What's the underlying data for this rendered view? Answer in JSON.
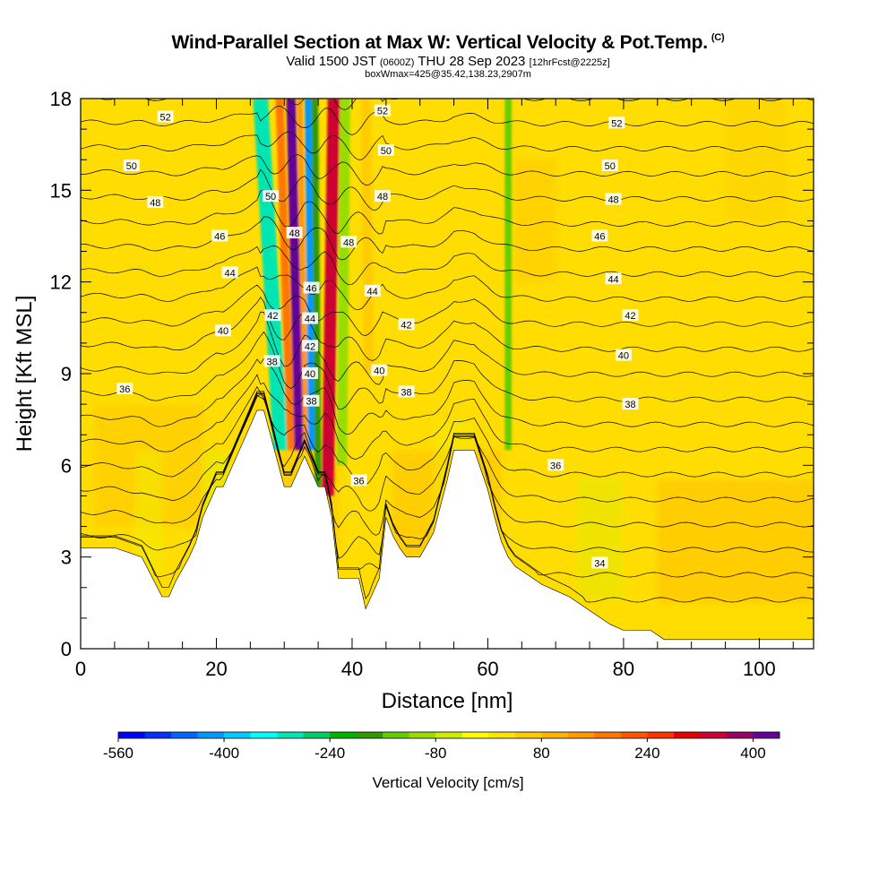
{
  "title": {
    "main": "Wind-Parallel Section at Max W: Vertical Velocity & Pot.Temp.",
    "unit_mark": "(C)",
    "line2_valid": "Valid 1500 JST",
    "line2_utc": "(0600Z)",
    "line2_date": "THU 28 Sep 2023",
    "line2_fcst": "[12hrFcst@2225z]",
    "line3": "boxWmax=425@35.42,138.23,2907m"
  },
  "chart_data": {
    "type": "contour",
    "xlabel": "Distance [nm]",
    "ylabel": "Height [Kft MSL]",
    "xlim": [
      0,
      108
    ],
    "ylim": [
      0,
      18
    ],
    "x_ticks": [
      "0",
      "20",
      "40",
      "60",
      "80",
      "100"
    ],
    "y_ticks": [
      "0",
      "3",
      "6",
      "9",
      "12",
      "15",
      "18"
    ],
    "colorbar": {
      "label": "Vertical Velocity [cm/s]",
      "tick_labels": [
        "-560",
        "-400",
        "-240",
        "-80",
        "80",
        "240",
        "400"
      ],
      "tick_values": [
        -560,
        -400,
        -240,
        -80,
        80,
        240,
        400
      ],
      "range": [
        -560,
        440
      ],
      "colors": [
        "#0000ff",
        "#0033ff",
        "#0066ff",
        "#0099ff",
        "#00ccff",
        "#00ffff",
        "#00e6b3",
        "#00cc66",
        "#00b300",
        "#339900",
        "#66cc00",
        "#99dd00",
        "#ccee00",
        "#ffff00",
        "#ffe600",
        "#ffcc00",
        "#ffb300",
        "#ff9900",
        "#ff7700",
        "#ff5500",
        "#ff3300",
        "#e60000",
        "#cc0033",
        "#990066",
        "#660099"
      ]
    },
    "terrain_profile": {
      "x": [
        0,
        5,
        9,
        12,
        13,
        14,
        16,
        17,
        18,
        20,
        21,
        24,
        26,
        27,
        30,
        31,
        33,
        35,
        36,
        37,
        38,
        41,
        42,
        44,
        45,
        46,
        47,
        48,
        50,
        52,
        54,
        55,
        56,
        58,
        60,
        61,
        62,
        63,
        64,
        66,
        68,
        70,
        72,
        74,
        76,
        78,
        80,
        82,
        84,
        86,
        88,
        90,
        95,
        100,
        105,
        108
      ],
      "height_kft": [
        3.3,
        3.3,
        3.0,
        1.7,
        1.7,
        2.2,
        3.0,
        3.5,
        4.3,
        5.3,
        5.3,
        6.8,
        7.8,
        7.8,
        5.3,
        5.3,
        6.3,
        5.3,
        5.3,
        4.3,
        2.3,
        2.3,
        1.3,
        2.3,
        4.3,
        3.7,
        3.3,
        3.0,
        3.0,
        3.8,
        5.5,
        6.5,
        6.5,
        6.5,
        5.2,
        4.3,
        3.5,
        3.0,
        2.7,
        2.4,
        2.1,
        1.9,
        1.7,
        1.4,
        1.1,
        0.8,
        0.6,
        0.6,
        0.6,
        0.3,
        0.3,
        0.3,
        0.3,
        0.3,
        0.3,
        0.3
      ]
    },
    "updraft_bands": [
      {
        "x_bottom_nm": 29.5,
        "z_bottom": 6.5,
        "x_top_nm": 26.5,
        "z_top": 18,
        "w_cm_s": -320,
        "width_nm": 2.2
      },
      {
        "x_bottom_nm": 31.0,
        "z_bottom": 6.5,
        "x_top_nm": 29.3,
        "z_top": 18,
        "w_cm_s": 180,
        "width_nm": 1.2
      },
      {
        "x_bottom_nm": 32.2,
        "z_bottom": 6.5,
        "x_top_nm": 31.0,
        "z_top": 18,
        "w_cm_s": 420,
        "width_nm": 1.4
      },
      {
        "x_bottom_nm": 33.2,
        "z_bottom": 6.5,
        "x_top_nm": 32.3,
        "z_top": 18,
        "w_cm_s": 120,
        "width_nm": 0.8
      },
      {
        "x_bottom_nm": 34.0,
        "z_bottom": 6.5,
        "x_top_nm": 33.5,
        "z_top": 18,
        "w_cm_s": -420,
        "width_nm": 1.0
      },
      {
        "x_bottom_nm": 35.0,
        "z_bottom": 5.3,
        "x_top_nm": 34.5,
        "z_top": 18,
        "w_cm_s": -200,
        "width_nm": 1.0
      },
      {
        "x_bottom_nm": 36.4,
        "z_bottom": 5.0,
        "x_top_nm": 37.3,
        "z_top": 18,
        "w_cm_s": 330,
        "width_nm": 1.8
      },
      {
        "x_bottom_nm": 38.5,
        "z_bottom": 6.0,
        "x_top_nm": 39.0,
        "z_top": 18,
        "w_cm_s": -120,
        "width_nm": 1.5
      },
      {
        "x_bottom_nm": 42.5,
        "z_bottom": 9.0,
        "x_top_nm": 42.0,
        "z_top": 18,
        "w_cm_s": 60,
        "width_nm": 1.5
      },
      {
        "x_bottom_nm": 63.0,
        "z_bottom": 6.5,
        "x_top_nm": 63.0,
        "z_top": 18,
        "w_cm_s": -150,
        "width_nm": 1.0
      }
    ],
    "theta_contours_c": [
      34,
      35,
      36,
      37,
      38,
      39,
      40,
      41,
      42,
      43,
      44,
      45,
      46,
      47,
      48,
      49,
      50,
      51,
      52,
      53,
      54
    ],
    "contour_labels": [
      {
        "text": "52",
        "x": 12.5,
        "z": 17.4
      },
      {
        "text": "50",
        "x": 7.5,
        "z": 15.8
      },
      {
        "text": "48",
        "x": 11.0,
        "z": 14.6
      },
      {
        "text": "46",
        "x": 20.5,
        "z": 13.5
      },
      {
        "text": "44",
        "x": 22.0,
        "z": 12.3
      },
      {
        "text": "40",
        "x": 21.0,
        "z": 10.4
      },
      {
        "text": "36",
        "x": 6.5,
        "z": 8.5
      },
      {
        "text": "50",
        "x": 28.0,
        "z": 14.8
      },
      {
        "text": "48",
        "x": 31.5,
        "z": 13.6
      },
      {
        "text": "46",
        "x": 34.0,
        "z": 11.8
      },
      {
        "text": "44",
        "x": 33.8,
        "z": 10.8
      },
      {
        "text": "42",
        "x": 28.3,
        "z": 10.9
      },
      {
        "text": "42",
        "x": 33.8,
        "z": 9.9
      },
      {
        "text": "40",
        "x": 33.8,
        "z": 9.0
      },
      {
        "text": "38",
        "x": 28.2,
        "z": 9.4
      },
      {
        "text": "38",
        "x": 34.0,
        "z": 8.1
      },
      {
        "text": "52",
        "x": 44.5,
        "z": 17.6
      },
      {
        "text": "50",
        "x": 45.0,
        "z": 16.3
      },
      {
        "text": "48",
        "x": 44.5,
        "z": 14.8
      },
      {
        "text": "48",
        "x": 39.5,
        "z": 13.3
      },
      {
        "text": "44",
        "x": 43.0,
        "z": 11.7
      },
      {
        "text": "42",
        "x": 48.0,
        "z": 10.6
      },
      {
        "text": "40",
        "x": 44.0,
        "z": 9.1
      },
      {
        "text": "38",
        "x": 48.0,
        "z": 8.4
      },
      {
        "text": "36",
        "x": 41.0,
        "z": 5.5
      },
      {
        "text": "52",
        "x": 79.0,
        "z": 17.2
      },
      {
        "text": "50",
        "x": 78.0,
        "z": 15.8
      },
      {
        "text": "48",
        "x": 78.5,
        "z": 14.7
      },
      {
        "text": "46",
        "x": 76.5,
        "z": 13.5
      },
      {
        "text": "44",
        "x": 78.5,
        "z": 12.1
      },
      {
        "text": "42",
        "x": 81.0,
        "z": 10.9
      },
      {
        "text": "40",
        "x": 80.0,
        "z": 9.6
      },
      {
        "text": "38",
        "x": 81.0,
        "z": 8.0
      },
      {
        "text": "36",
        "x": 70.0,
        "z": 6.0
      },
      {
        "text": "34",
        "x": 76.5,
        "z": 2.8
      }
    ]
  }
}
